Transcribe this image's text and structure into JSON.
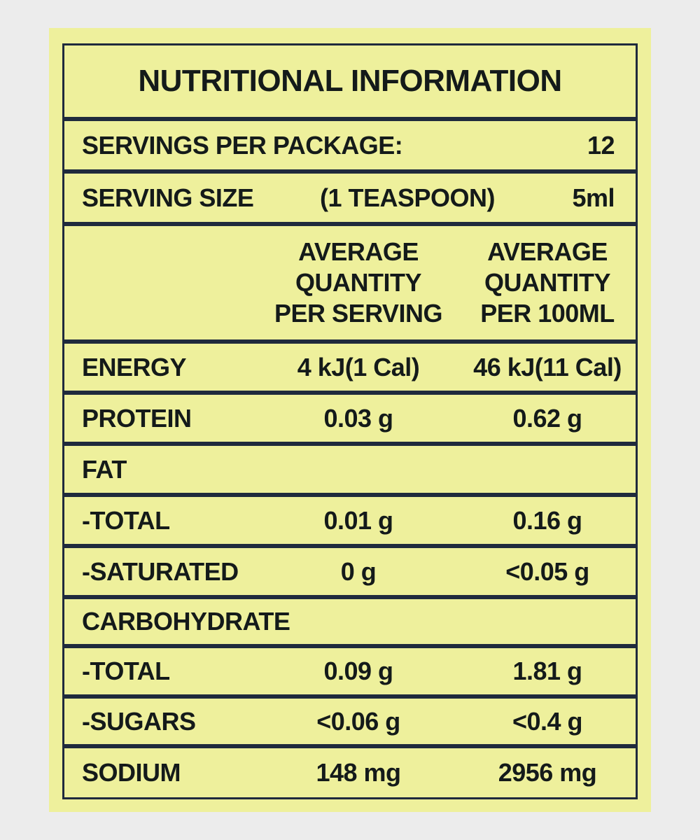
{
  "title": "NUTRITIONAL INFORMATION",
  "servings_per_package": {
    "label": "SERVINGS PER PACKAGE:",
    "value": "12"
  },
  "serving_size": {
    "label": "SERVING SIZE",
    "unit_desc": "(1 TEASPOON)",
    "value": "5ml"
  },
  "header": {
    "per_serving": [
      "AVERAGE",
      "QUANTITY",
      "PER SERVING"
    ],
    "per_100ml": [
      "AVERAGE",
      "QUANTITY",
      "PER 100ML"
    ]
  },
  "rows": [
    {
      "label": "ENERGY",
      "per_serving": "4 kJ(1 Cal)",
      "per_100ml": "46 kJ(11 Cal)"
    },
    {
      "label": "PROTEIN",
      "per_serving": "0.03 g",
      "per_100ml": "0.62 g"
    },
    {
      "label": "FAT",
      "per_serving": "",
      "per_100ml": ""
    },
    {
      "label": "-TOTAL",
      "per_serving": "0.01 g",
      "per_100ml": "0.16 g"
    },
    {
      "label": "-SATURATED",
      "per_serving": "0 g",
      "per_100ml": "<0.05 g"
    },
    {
      "label": "CARBOHYDRATE",
      "per_serving": "",
      "per_100ml": ""
    },
    {
      "label": "-TOTAL",
      "per_serving": "0.09 g",
      "per_100ml": "1.81 g"
    },
    {
      "label": "-SUGARS",
      "per_serving": "<0.06 g",
      "per_100ml": "<0.4 g"
    },
    {
      "label": "SODIUM",
      "per_serving": "148 mg",
      "per_100ml": "2956 mg"
    }
  ],
  "colors": {
    "panel": "#eef09c",
    "frame": "#1f2a3d",
    "text": "#141a1a",
    "page": "#ececec"
  }
}
